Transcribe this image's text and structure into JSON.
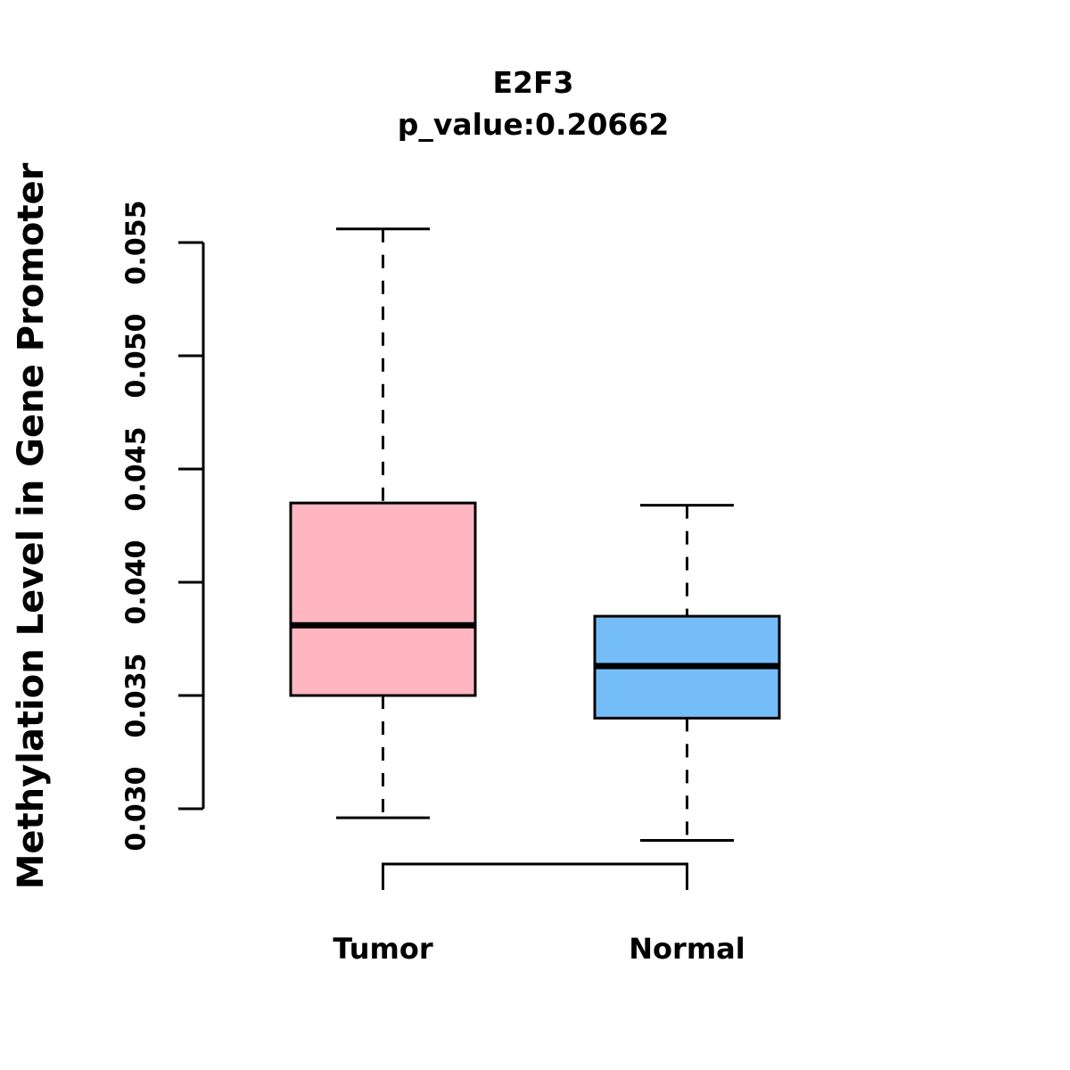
{
  "page": {
    "background_color": "#FFFFFF",
    "foreground_color": "#000000"
  },
  "chart_data": {
    "type": "boxplot",
    "title": "E2F3",
    "subtitle": "p_value:0.20662",
    "ylabel": "Methylation Level in Gene Promoter",
    "categories": [
      "Tumor",
      "Normal"
    ],
    "ylim": [
      0.03,
      0.055
    ],
    "yticks": [
      0.03,
      0.035,
      0.04,
      0.045,
      0.05,
      0.055
    ],
    "ytick_labels": [
      "0.030",
      "0.035",
      "0.040",
      "0.045",
      "0.050",
      "0.055"
    ],
    "grid": "off",
    "legend": "none",
    "whisker_style": "dashed",
    "stroke_color": "#000000",
    "series": [
      {
        "name": "Tumor",
        "fill_color": "#FFB6C1",
        "lower_whisker": 0.0296,
        "q1": 0.035,
        "median": 0.0381,
        "q3": 0.0435,
        "upper_whisker": 0.0556,
        "outliers": []
      },
      {
        "name": "Normal",
        "fill_color": "#75BDF8",
        "lower_whisker": 0.0286,
        "q1": 0.034,
        "median": 0.0363,
        "q3": 0.0385,
        "upper_whisker": 0.0434,
        "outliers": []
      }
    ]
  }
}
